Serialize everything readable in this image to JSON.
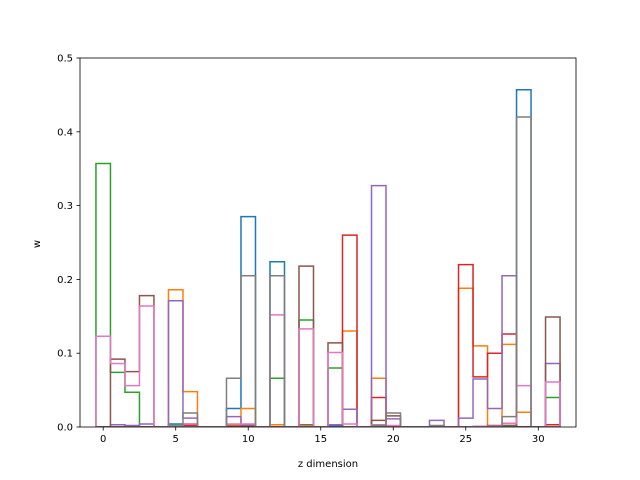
{
  "chart_data": {
    "type": "step-histogram",
    "xlabel": "z dimension",
    "ylabel": "w",
    "xlim": [
      -1.6,
      32.6
    ],
    "ylim": [
      0,
      0.5
    ],
    "x_ticks": [
      0,
      5,
      10,
      15,
      20,
      25,
      30
    ],
    "x_tick_labels": [
      "0",
      "5",
      "10",
      "15",
      "20",
      "25",
      "30"
    ],
    "y_ticks": [
      0.0,
      0.1,
      0.2,
      0.3,
      0.4,
      0.5
    ],
    "y_tick_labels": [
      "0.0",
      "0.1",
      "0.2",
      "0.3",
      "0.4",
      "0.5"
    ],
    "grid": false,
    "legend": "none",
    "bins": [
      0,
      1,
      2,
      3,
      4,
      5,
      6,
      7,
      8,
      9,
      10,
      11,
      12,
      13,
      14,
      15,
      16,
      17,
      18,
      19,
      20,
      21,
      22,
      23,
      24,
      25,
      26,
      27,
      28,
      29,
      30,
      31
    ],
    "series": [
      {
        "color": "#1f77b4",
        "values": [
          0,
          0,
          0.001,
          0,
          0,
          0.004,
          0.002,
          0,
          0,
          0.025,
          0.285,
          0,
          0.224,
          0,
          0.003,
          0,
          0.001,
          0,
          0,
          0.002,
          0,
          0,
          0,
          0,
          0,
          0,
          0,
          0,
          0.002,
          0.457,
          0,
          0
        ]
      },
      {
        "color": "#ff7f0e",
        "values": [
          0,
          0,
          0.001,
          0,
          0,
          0.186,
          0.048,
          0,
          0,
          0.003,
          0.025,
          0,
          0.003,
          0,
          0.002,
          0,
          0.003,
          0.13,
          0,
          0.066,
          0,
          0,
          0,
          0,
          0,
          0.188,
          0.11,
          0,
          0.112,
          0.02,
          0,
          0
        ]
      },
      {
        "color": "#2ca02c",
        "values": [
          0.357,
          0.074,
          0.047,
          0,
          0,
          0.002,
          0.002,
          0,
          0,
          0.001,
          0.001,
          0,
          0.066,
          0,
          0.145,
          0,
          0.08,
          0,
          0,
          0,
          0,
          0,
          0,
          0,
          0,
          0,
          0,
          0,
          0,
          0,
          0,
          0.04
        ]
      },
      {
        "color": "#d62728",
        "values": [
          0,
          0,
          0,
          0,
          0,
          0.001,
          0.002,
          0,
          0,
          0,
          0,
          0,
          0,
          0,
          0,
          0,
          0.003,
          0.26,
          0,
          0.04,
          0,
          0,
          0,
          0,
          0,
          0.22,
          0.068,
          0.1,
          0.126,
          0,
          0,
          0.003
        ]
      },
      {
        "color": "#9467bd",
        "values": [
          0,
          0.003,
          0.002,
          0.004,
          0,
          0.171,
          0.012,
          0,
          0,
          0.014,
          0.003,
          0,
          0,
          0,
          0,
          0,
          0.003,
          0.024,
          0,
          0.327,
          0.011,
          0,
          0,
          0.009,
          0,
          0.012,
          0.065,
          0.025,
          0.205,
          0,
          0,
          0.086
        ]
      },
      {
        "color": "#8c564b",
        "values": [
          0,
          0.092,
          0.075,
          0.178,
          0,
          0.001,
          0.004,
          0,
          0,
          0.001,
          0.001,
          0,
          0,
          0,
          0.218,
          0,
          0.114,
          0,
          0,
          0.009,
          0.015,
          0,
          0,
          0,
          0,
          0,
          0,
          0.002,
          0.002,
          0,
          0,
          0.149
        ]
      },
      {
        "color": "#e377c2",
        "values": [
          0.123,
          0.086,
          0.056,
          0.164,
          0,
          0.001,
          0.004,
          0,
          0,
          0.004,
          0.004,
          0,
          0.152,
          0,
          0.133,
          0,
          0.101,
          0.004,
          0,
          0.003,
          0.002,
          0,
          0,
          0,
          0,
          0,
          0.001,
          0.001,
          0.005,
          0.056,
          0,
          0.061
        ]
      },
      {
        "color": "#7f7f7f",
        "values": [
          0,
          0,
          0,
          0,
          0,
          0,
          0.019,
          0,
          0,
          0.066,
          0.205,
          0,
          0.205,
          0,
          0,
          0,
          0,
          0,
          0,
          0.002,
          0.019,
          0,
          0,
          0.002,
          0,
          0,
          0,
          0,
          0.014,
          0.42,
          0,
          0
        ]
      }
    ]
  }
}
